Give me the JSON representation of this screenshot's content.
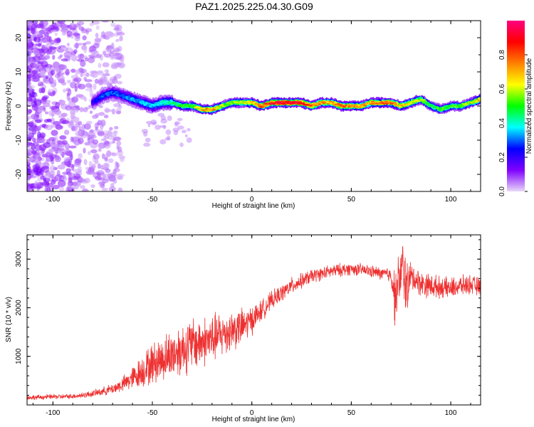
{
  "title": "PAZ1.2025.225.04.30.G09",
  "chart_data": [
    {
      "type": "heatmap",
      "xlabel": "Height of straight line (km)",
      "ylabel": "Frequency (Hz)",
      "xlim": [
        -113,
        115
      ],
      "ylim": [
        -25,
        25
      ],
      "xticks": [
        "-100",
        "-50",
        "0",
        "50",
        "100"
      ],
      "xtick_values": [
        -100,
        -50,
        0,
        50,
        100
      ],
      "yticks": [
        "20",
        "10",
        "0",
        "-10",
        "-20"
      ],
      "ytick_values": [
        20,
        10,
        0,
        -10,
        -20
      ],
      "colorbar": {
        "label": "Normalized spectral amplitude",
        "ticks": [
          "0.0",
          "0.2",
          "0.4",
          "0.6",
          "0.8"
        ],
        "tick_values": [
          0.0,
          0.2,
          0.4,
          0.6,
          0.8
        ],
        "range": [
          0,
          1
        ],
        "colors": [
          "#e8d8f8",
          "#8000ff",
          "#0000ff",
          "#00ffff",
          "#00ff00",
          "#ffff00",
          "#ff8000",
          "#ff0000",
          "#ff0080"
        ]
      },
      "ridge": {
        "x": [
          -80,
          -75,
          -70,
          -65,
          -60,
          -55,
          -50,
          -45,
          -40,
          -35,
          -30,
          -25,
          -20,
          -15,
          -10,
          -5,
          0,
          5,
          10,
          15,
          20,
          25,
          30,
          35,
          40,
          45,
          50,
          55,
          60,
          65,
          70,
          75,
          80,
          85,
          90,
          95,
          100,
          105,
          110,
          115
        ],
        "y": [
          1,
          3,
          4,
          3,
          2,
          1,
          0,
          1,
          1,
          0,
          0,
          -1,
          -1,
          0,
          1,
          1,
          1,
          0,
          1,
          1,
          1,
          1,
          0,
          1,
          1,
          0,
          0,
          0,
          1,
          1,
          1,
          0,
          1,
          2,
          0,
          -1,
          0,
          0,
          1,
          2
        ],
        "amplitude": [
          0.2,
          0.3,
          0.3,
          0.3,
          0.35,
          0.35,
          0.35,
          0.4,
          0.45,
          0.5,
          0.55,
          0.7,
          0.75,
          0.6,
          0.55,
          0.6,
          0.7,
          0.8,
          0.9,
          0.92,
          0.9,
          0.88,
          0.8,
          0.75,
          0.7,
          0.8,
          0.75,
          0.7,
          0.75,
          0.8,
          0.8,
          0.7,
          0.65,
          0.6,
          0.5,
          0.55,
          0.5,
          0.55,
          0.6,
          0.7
        ]
      },
      "noise_region_x": [
        -113,
        -65
      ]
    },
    {
      "type": "line",
      "xlabel": "Height of straight line (km)",
      "ylabel": "SNR (10 * v/v)",
      "xlim": [
        -113,
        115
      ],
      "ylim": [
        0,
        3500
      ],
      "xticks": [
        "-100",
        "-50",
        "0",
        "50",
        "100"
      ],
      "xtick_values": [
        -100,
        -50,
        0,
        50,
        100
      ],
      "yticks": [
        "3000",
        "2000",
        "1000"
      ],
      "ytick_values": [
        3000,
        2000,
        1000
      ],
      "color": "#ee3030",
      "series": [
        {
          "x": [
            -113,
            -105,
            -100,
            -95,
            -90,
            -85,
            -80,
            -75,
            -70,
            -65,
            -60,
            -55,
            -50,
            -45,
            -40,
            -35,
            -30,
            -25,
            -20,
            -15,
            -10,
            -5,
            0,
            5,
            10,
            15,
            20,
            25,
            30,
            35,
            40,
            45,
            50,
            55,
            60,
            65,
            70,
            72,
            74,
            76,
            78,
            80,
            85,
            90,
            95,
            100,
            105,
            110,
            115
          ],
          "y": [
            150,
            160,
            170,
            170,
            180,
            200,
            230,
            280,
            330,
            420,
            550,
            700,
            850,
            950,
            1050,
            1150,
            1250,
            1300,
            1350,
            1450,
            1550,
            1600,
            1750,
            1950,
            2150,
            2300,
            2450,
            2550,
            2650,
            2700,
            2750,
            2780,
            2800,
            2780,
            2750,
            2700,
            2680,
            2200,
            2600,
            2800,
            2400,
            2650,
            2500,
            2450,
            2420,
            2400,
            2450,
            2480,
            2420
          ],
          "spread": [
            60,
            60,
            60,
            60,
            60,
            70,
            80,
            100,
            130,
            180,
            280,
            400,
            500,
            550,
            600,
            650,
            650,
            600,
            600,
            550,
            500,
            450,
            350,
            250,
            220,
            200,
            200,
            180,
            170,
            160,
            160,
            160,
            150,
            150,
            150,
            150,
            200,
            700,
            600,
            800,
            700,
            350,
            300,
            300,
            250,
            250,
            250,
            230,
            230
          ]
        }
      ]
    }
  ]
}
